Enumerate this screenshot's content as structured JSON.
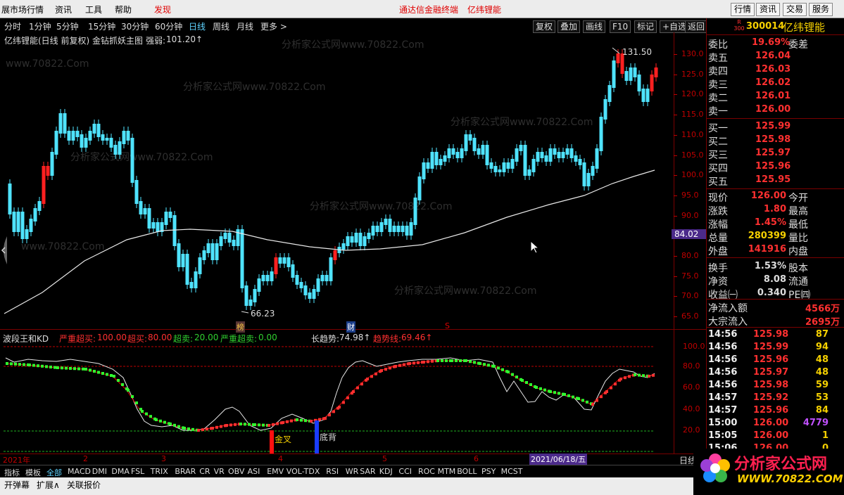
{
  "menu": {
    "items": [
      "展市场行情",
      "资讯",
      "工具",
      "帮助",
      "发现"
    ],
    "center": "通达信金融终端",
    "stock_title": "亿纬锂能",
    "right_buttons": [
      "行情",
      "资讯",
      "交易",
      "服务"
    ]
  },
  "periods": [
    "分时",
    "1分钟",
    "5分钟",
    "15分钟",
    "30分钟",
    "60分钟",
    "日线",
    "周线",
    "月线",
    "更多 >"
  ],
  "active_period": "日线",
  "toolbar": [
    "复权",
    "叠加",
    "画线",
    "F10",
    "标记",
    "+自选",
    "返回"
  ],
  "chart_header": {
    "prefix": "亿纬锂能(日线 前复权) 金钻抓妖主图",
    "strength_label": "强弱:",
    "strength_value": "101.20↑"
  },
  "watermarks": [
    "分析家公式网www.70822.Com",
    "www.70822.Com"
  ],
  "price_axis": [
    "130.0",
    "125.0",
    "120.0",
    "115.0",
    "110.0",
    "105.0",
    "100.0",
    "95.0",
    "90.0",
    "85.0",
    "80.0",
    "75.0",
    "70.0",
    "65.0"
  ],
  "current_price_tag": "84.02",
  "annotations": {
    "high": "131.50",
    "low": "66.23",
    "badge_bang": "榜",
    "badge_cai": "财",
    "badge_s": "S"
  },
  "indicator_header": {
    "name": "波段王和KD",
    "items": [
      {
        "label": "严重超买:",
        "value": "100.00"
      },
      {
        "label": "超买:",
        "value": "80.00"
      },
      {
        "label": "超卖:",
        "value": "20.00"
      },
      {
        "label": "严重超卖:",
        "value": "0.00"
      },
      {
        "label": "长趋势:",
        "value": "74.98↑"
      },
      {
        "label": "趋势线:",
        "value": "69.46↑"
      }
    ]
  },
  "indicator_axis": [
    "100.0",
    "80.0",
    "60.0",
    "40.0",
    "20.0"
  ],
  "signals": {
    "golden_cross": "金叉",
    "bottom_divergence": "底背"
  },
  "time_axis": {
    "labels": [
      "2021年",
      "2",
      "3",
      "4",
      "5",
      "6"
    ],
    "date_tag": "2021/06/18/五",
    "period_label": "日线"
  },
  "indicator_tabs": [
    "指标",
    "模板",
    "全部",
    "MACD",
    "DMI",
    "DMA",
    "FSL",
    "TRIX",
    "BRAR",
    "CR",
    "VR",
    "OBV",
    "ASI",
    "EMV",
    "VOL-TDX",
    "RSI",
    "WR",
    "SAR",
    "KDJ",
    "CCI",
    "ROC",
    "MTM",
    "BOLL",
    "PSY",
    "MCST"
  ],
  "statusbar": [
    "开弹幕",
    "扩展∧",
    "关联报价"
  ],
  "quote": {
    "header": {
      "badge": "R 300",
      "code": "300014",
      "name": "亿纬锂能"
    },
    "weibi": {
      "label": "委比",
      "value": "19.69%",
      "label2": "委差"
    },
    "asks": [
      {
        "label": "卖五",
        "price": "126.04"
      },
      {
        "label": "卖四",
        "price": "126.03"
      },
      {
        "label": "卖三",
        "price": "126.02"
      },
      {
        "label": "卖二",
        "price": "126.01"
      },
      {
        "label": "卖一",
        "price": "126.00"
      }
    ],
    "bids": [
      {
        "label": "买一",
        "price": "125.99"
      },
      {
        "label": "买二",
        "price": "125.98"
      },
      {
        "label": "买三",
        "price": "125.97"
      },
      {
        "label": "买四",
        "price": "125.96"
      },
      {
        "label": "买五",
        "price": "125.95"
      }
    ],
    "stats": [
      {
        "l": "现价",
        "v": "126.00",
        "l2": "今开"
      },
      {
        "l": "涨跌",
        "v": "1.80",
        "l2": "最高"
      },
      {
        "l": "涨幅",
        "v": "1.45%",
        "l2": "最低"
      },
      {
        "l": "总量",
        "v": "280399",
        "l2": "量比"
      },
      {
        "l": "外盘",
        "v": "141916",
        "l2": "内盘"
      },
      {
        "l": "换手",
        "v": "1.53%",
        "l2": "股本"
      },
      {
        "l": "净资",
        "v": "8.08",
        "l2": "流通"
      },
      {
        "l": "收益㈠",
        "v": "0.340",
        "l2": "PE㈣"
      }
    ],
    "flows": [
      {
        "l": "净流入额",
        "v": "4566万"
      },
      {
        "l": "大宗流入",
        "v": "2695万"
      }
    ],
    "ticks": [
      {
        "t": "14:56",
        "p": "125.98",
        "v": "87"
      },
      {
        "t": "14:56",
        "p": "125.99",
        "v": "94"
      },
      {
        "t": "14:56",
        "p": "125.96",
        "v": "48"
      },
      {
        "t": "14:56",
        "p": "125.97",
        "v": "48"
      },
      {
        "t": "14:56",
        "p": "125.98",
        "v": "59"
      },
      {
        "t": "14:57",
        "p": "125.92",
        "v": "53"
      },
      {
        "t": "14:57",
        "p": "125.96",
        "v": "84"
      },
      {
        "t": "15:00",
        "p": "126.00",
        "v": "4779"
      },
      {
        "t": "15:05",
        "p": "126.00",
        "v": "1"
      },
      {
        "t": "15:06",
        "p": "126.00",
        "v": "0"
      }
    ]
  },
  "logo": {
    "title": "分析家公式网",
    "url": "WWW.70822.COM"
  }
}
